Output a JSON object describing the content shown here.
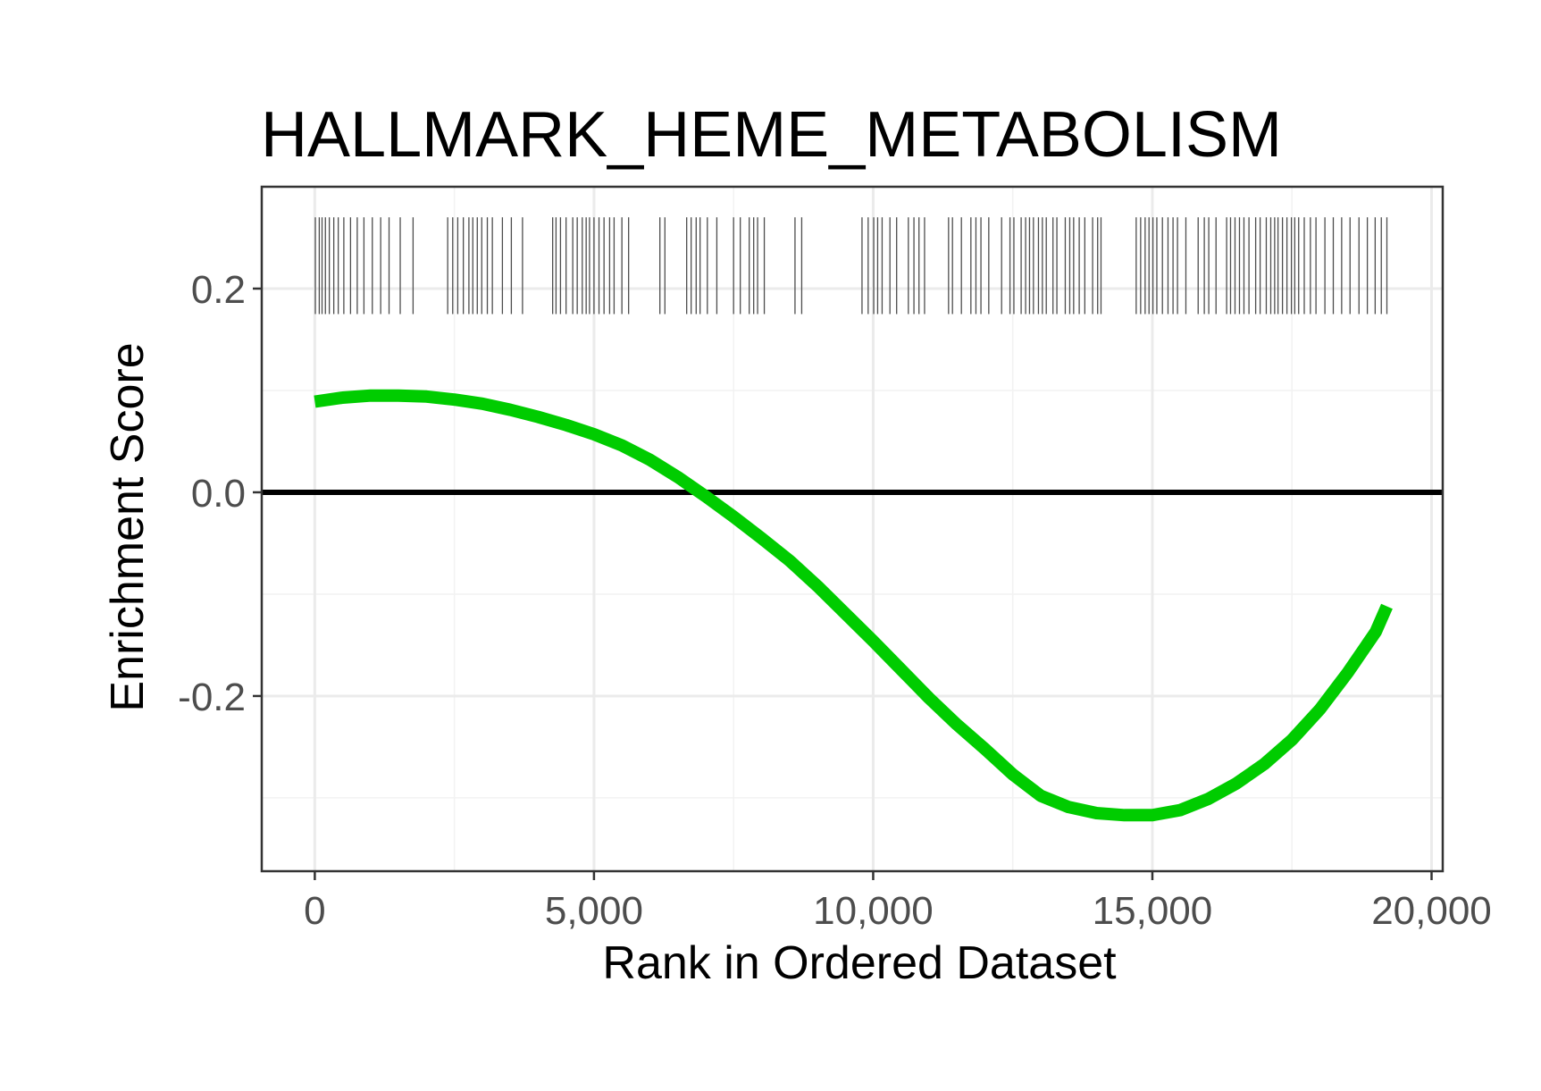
{
  "chart_data": {
    "type": "line",
    "title": "HALLMARK_HEME_METABOLISM",
    "xlabel": "Rank in Ordered Dataset",
    "ylabel": "Enrichment Score",
    "xlim": [
      -950,
      20200
    ],
    "ylim": [
      -0.372,
      0.3
    ],
    "x_ticks": [
      0,
      5000,
      10000,
      15000,
      20000
    ],
    "x_tick_labels": [
      "0",
      "5,000",
      "10,000",
      "15,000",
      "20,000"
    ],
    "y_ticks": [
      -0.2,
      0.0,
      0.2
    ],
    "y_tick_labels": [
      "-0.2",
      "0.0",
      "0.2"
    ],
    "grid": true,
    "zero_line": 0.0,
    "series": [
      {
        "color": "#00cc00",
        "x": [
          0,
          500,
          1000,
          1500,
          2000,
          2500,
          3000,
          3500,
          4000,
          4500,
          5000,
          5500,
          6000,
          6500,
          7000,
          7500,
          8000,
          8500,
          9000,
          9500,
          10000,
          10500,
          11000,
          11500,
          12000,
          12500,
          13000,
          13500,
          14000,
          14500,
          15000,
          15500,
          16000,
          16500,
          17000,
          17500,
          18000,
          18500,
          19000,
          19200
        ],
        "y": [
          0.089,
          0.093,
          0.095,
          0.095,
          0.094,
          0.091,
          0.087,
          0.081,
          0.074,
          0.066,
          0.057,
          0.046,
          0.032,
          0.015,
          -0.004,
          -0.024,
          -0.045,
          -0.067,
          -0.092,
          -0.119,
          -0.146,
          -0.174,
          -0.202,
          -0.228,
          -0.252,
          -0.277,
          -0.298,
          -0.309,
          -0.315,
          -0.317,
          -0.317,
          -0.312,
          -0.301,
          -0.286,
          -0.267,
          -0.243,
          -0.213,
          -0.177,
          -0.137,
          -0.112
        ]
      }
    ],
    "gene_hits": {
      "color": "#4d4d4d",
      "y_range": [
        0.175,
        0.27
      ],
      "x": [
        10,
        80,
        130,
        190,
        260,
        340,
        420,
        520,
        640,
        760,
        880,
        1030,
        1180,
        1330,
        1530,
        1760,
        2380,
        2470,
        2560,
        2660,
        2760,
        2830,
        2910,
        2990,
        3090,
        3180,
        3360,
        3520,
        3720,
        4260,
        4320,
        4400,
        4500,
        4620,
        4700,
        4790,
        4860,
        4920,
        5000,
        5090,
        5180,
        5280,
        5360,
        5500,
        5620,
        6180,
        6270,
        6660,
        6740,
        6830,
        6900,
        7030,
        7200,
        7500,
        7620,
        7780,
        7860,
        7930,
        8050,
        8600,
        8720,
        9800,
        9910,
        10010,
        10080,
        10160,
        10300,
        10420,
        10630,
        10730,
        10820,
        10920,
        11350,
        11420,
        11580,
        11750,
        11840,
        11930,
        12070,
        12300,
        12450,
        12520,
        12650,
        12730,
        12800,
        12870,
        12960,
        13030,
        13100,
        13220,
        13290,
        13440,
        13520,
        13590,
        13690,
        13790,
        13930,
        14020,
        14080,
        14710,
        14790,
        14870,
        14940,
        15010,
        15080,
        15180,
        15280,
        15370,
        15450,
        15600,
        15820,
        15930,
        16010,
        16140,
        16330,
        16400,
        16480,
        16560,
        16640,
        16730,
        16850,
        16930,
        17040,
        17120,
        17190,
        17250,
        17330,
        17410,
        17490,
        17550,
        17620,
        17720,
        17830,
        17930,
        18090,
        18240,
        18390,
        18540,
        18700,
        18850,
        18990,
        19100,
        19200
      ]
    }
  }
}
